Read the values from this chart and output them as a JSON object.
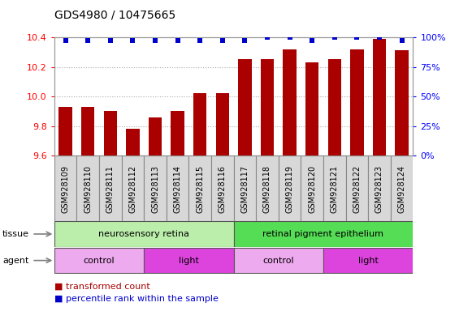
{
  "title": "GDS4980 / 10475665",
  "samples": [
    "GSM928109",
    "GSM928110",
    "GSM928111",
    "GSM928112",
    "GSM928113",
    "GSM928114",
    "GSM928115",
    "GSM928116",
    "GSM928117",
    "GSM928118",
    "GSM928119",
    "GSM928120",
    "GSM928121",
    "GSM928122",
    "GSM928123",
    "GSM928124"
  ],
  "bar_values": [
    9.93,
    9.93,
    9.9,
    9.78,
    9.86,
    9.9,
    10.02,
    10.02,
    10.25,
    10.25,
    10.32,
    10.23,
    10.25,
    10.32,
    10.39,
    10.31
  ],
  "percentile_values": [
    97,
    97,
    97,
    97,
    97,
    97,
    97,
    97,
    97,
    100,
    100,
    97,
    100,
    100,
    100,
    97
  ],
  "ylim_left": [
    9.6,
    10.4
  ],
  "ylim_right": [
    0,
    100
  ],
  "yticks_left": [
    9.6,
    9.8,
    10.0,
    10.2,
    10.4
  ],
  "yticks_right": [
    0,
    25,
    50,
    75,
    100
  ],
  "bar_color": "#aa0000",
  "dot_color": "#0000cc",
  "tissue_groups": [
    {
      "label": "neurosensory retina",
      "start": 0,
      "end": 8,
      "color": "#bbeeaa"
    },
    {
      "label": "retinal pigment epithelium",
      "start": 8,
      "end": 16,
      "color": "#55dd55"
    }
  ],
  "agent_groups": [
    {
      "label": "control",
      "start": 0,
      "end": 4,
      "color": "#eeaaee"
    },
    {
      "label": "light",
      "start": 4,
      "end": 8,
      "color": "#dd44dd"
    },
    {
      "label": "control",
      "start": 8,
      "end": 12,
      "color": "#eeaaee"
    },
    {
      "label": "light",
      "start": 12,
      "end": 16,
      "color": "#dd44dd"
    }
  ],
  "bg_color": "#ffffff",
  "chart_bg": "#ffffff",
  "spine_color": "#999999",
  "grid_color": "#aaaaaa",
  "title_fontsize": 10,
  "tick_fontsize": 8,
  "sample_fontsize": 7
}
